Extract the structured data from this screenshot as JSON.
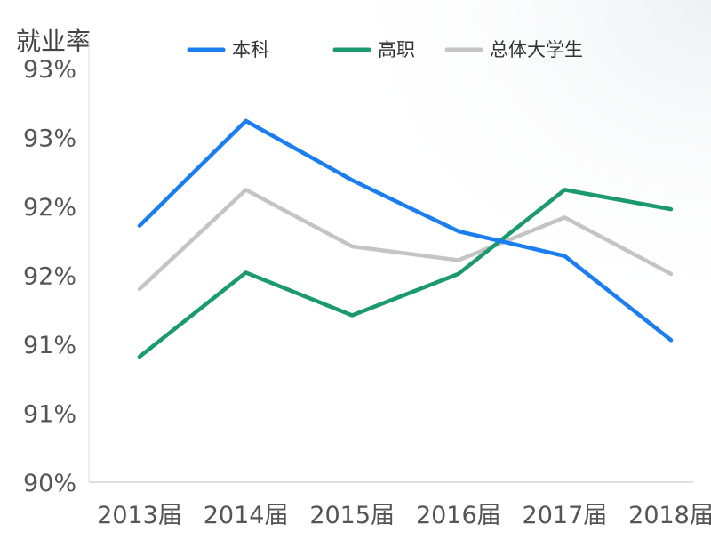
{
  "chart_data": {
    "type": "line",
    "title": "",
    "ylabel": "就业率",
    "xlabel": "",
    "categories": [
      "2013届",
      "2014届",
      "2015届",
      "2016届",
      "2017届",
      "2018届"
    ],
    "y_tick_labels": [
      "90%",
      "91%",
      "91%",
      "92%",
      "92%",
      "93%",
      "93%"
    ],
    "ylim": [
      90.0,
      93.0
    ],
    "grid": false,
    "legend_position": "top",
    "series": [
      {
        "name": "本科",
        "color": "#1a7ef0",
        "values": [
          91.86,
          92.62,
          92.19,
          91.82,
          91.64,
          91.03
        ]
      },
      {
        "name": "高职",
        "color": "#1a9a6e",
        "values": [
          90.91,
          91.52,
          91.21,
          91.51,
          92.12,
          91.98
        ]
      },
      {
        "name": "总体大学生",
        "color": "#c4c4c4",
        "values": [
          91.4,
          92.12,
          91.71,
          91.61,
          91.92,
          91.51
        ]
      }
    ]
  }
}
